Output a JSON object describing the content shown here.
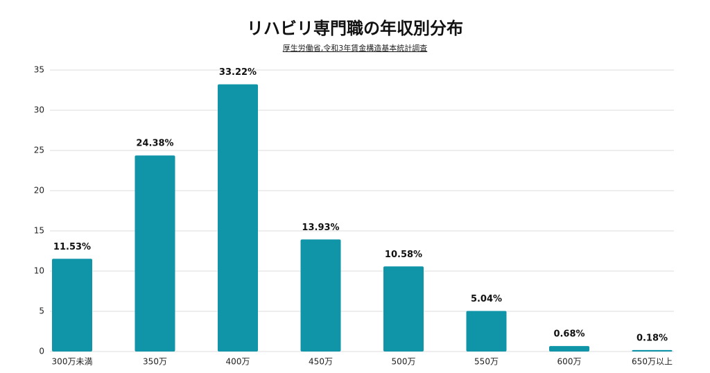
{
  "chart_data": {
    "type": "bar",
    "title": "リハビリ専門職の年収別分布",
    "subtitle": "厚生労働省,令和3年賃金構造基本統計調査",
    "categories": [
      "300万未満",
      "350万",
      "400万",
      "450万",
      "500万",
      "550万",
      "600万",
      "650万以上"
    ],
    "values": [
      11.53,
      24.38,
      33.22,
      13.93,
      10.58,
      5.04,
      0.68,
      0.18
    ],
    "value_labels": [
      "11.53%",
      "24.38%",
      "33.22%",
      "13.93%",
      "10.58%",
      "5.04%",
      "0.68%",
      "0.18%"
    ],
    "color": "#0f94a8",
    "ylim": [
      0,
      35
    ],
    "yticks": [
      0,
      5,
      10,
      15,
      20,
      25,
      30,
      35
    ],
    "grid": true
  }
}
